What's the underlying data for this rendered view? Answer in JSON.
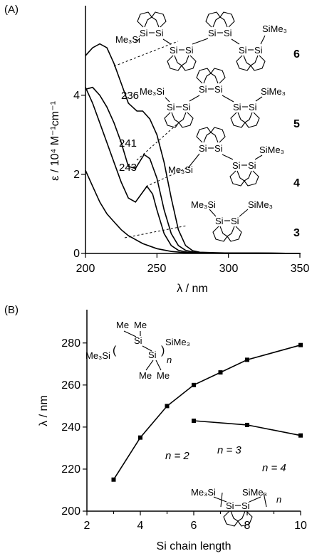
{
  "chart_data": [
    {
      "type": "line",
      "panel_label": "(A)",
      "xlabel": "λ / nm",
      "ylabel": "ε / 10⁴ M⁻¹cm⁻¹",
      "xlim": [
        200,
        350
      ],
      "ylim": [
        0,
        5.4
      ],
      "xticks": [
        "200",
        "250",
        "300",
        "350"
      ],
      "yticks": [
        "0",
        "2",
        "4"
      ],
      "series": [
        {
          "name": "6",
          "x": [
            200,
            205,
            210,
            215,
            220,
            225,
            230,
            236,
            240,
            245,
            250,
            255,
            260,
            265,
            270,
            275,
            280,
            290,
            300,
            320,
            350
          ],
          "y": [
            5.0,
            5.2,
            5.3,
            5.2,
            4.8,
            4.3,
            3.8,
            3.6,
            3.6,
            3.4,
            3.0,
            2.3,
            1.4,
            0.6,
            0.2,
            0.07,
            0.03,
            0.02,
            0.01,
            0.01,
            0
          ]
        },
        {
          "name": "5",
          "x": [
            200,
            205,
            210,
            215,
            220,
            225,
            230,
            235,
            241,
            245,
            250,
            255,
            260,
            265,
            270,
            275,
            280,
            290,
            300,
            320,
            350
          ],
          "y": [
            4.15,
            4.2,
            4.0,
            3.7,
            3.3,
            2.8,
            2.2,
            2.15,
            2.5,
            2.4,
            1.9,
            1.1,
            0.5,
            0.2,
            0.08,
            0.04,
            0.02,
            0.01,
            0.01,
            0.01,
            0
          ]
        },
        {
          "name": "4",
          "x": [
            200,
            205,
            210,
            215,
            220,
            225,
            230,
            235,
            243,
            247,
            250,
            255,
            260,
            265,
            270,
            275,
            280,
            290,
            300,
            320,
            350
          ],
          "y": [
            4.2,
            3.8,
            3.3,
            2.8,
            2.3,
            1.8,
            1.4,
            1.3,
            1.7,
            1.5,
            1.1,
            0.5,
            0.2,
            0.08,
            0.04,
            0.02,
            0.01,
            0.01,
            0.01,
            0,
            0
          ]
        },
        {
          "name": "3",
          "x": [
            200,
            205,
            210,
            215,
            220,
            225,
            230,
            240,
            250,
            260,
            270,
            280,
            300,
            350
          ],
          "y": [
            2.1,
            1.7,
            1.3,
            1.0,
            0.8,
            0.6,
            0.45,
            0.25,
            0.12,
            0.05,
            0.02,
            0.01,
            0,
            0
          ]
        }
      ],
      "peak_labels": [
        "236",
        "241",
        "243"
      ],
      "compound_numbers": [
        "6",
        "5",
        "4",
        "3"
      ],
      "structure_texts": [
        "Si",
        "Me₃Si",
        "SiMe₃"
      ]
    },
    {
      "type": "line",
      "panel_label": "(B)",
      "xlabel": "Si chain length",
      "ylabel": "λ / nm",
      "xlim": [
        2,
        10
      ],
      "ylim": [
        200,
        285
      ],
      "xticks": [
        "2",
        "4",
        "6",
        "8",
        "10"
      ],
      "yticks": [
        "200",
        "220",
        "240",
        "260",
        "280"
      ],
      "series": [
        {
          "x": [
            3,
            4,
            5,
            6,
            7,
            8,
            10
          ],
          "y": [
            215,
            235,
            250,
            260,
            266,
            272,
            279
          ]
        },
        {
          "x": [
            6,
            8,
            10
          ],
          "y": [
            243,
            241,
            236
          ]
        }
      ],
      "annotations": [
        "n = 2",
        "n = 3",
        "n = 4"
      ],
      "structure_texts": [
        "Me",
        "Si",
        "Me₃Si",
        "SiMe₃",
        "n"
      ]
    }
  ]
}
